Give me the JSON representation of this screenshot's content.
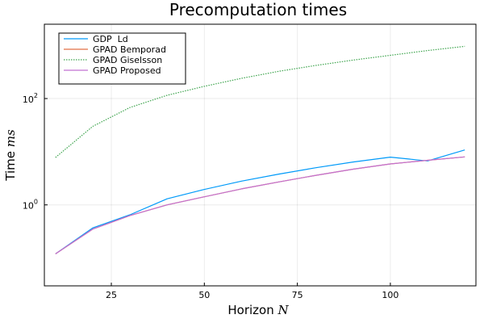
{
  "chart_data": {
    "type": "line",
    "title": "Precomputation times",
    "xlabel": {
      "text": "Horizon ",
      "math": "N"
    },
    "ylabel": {
      "text": "Time ",
      "math": "ms"
    },
    "yscale": "log10",
    "xlim": [
      7,
      123
    ],
    "ylim": [
      0.03,
      2500
    ],
    "x_ticks": [
      25,
      50,
      75,
      100
    ],
    "x_tick_labels": [
      "25",
      "50",
      "75",
      "100"
    ],
    "y_ticks": [
      1,
      100
    ],
    "y_tick_labels": [
      {
        "base": "10",
        "exp": "0"
      },
      {
        "base": "10",
        "exp": "2"
      }
    ],
    "grid": true,
    "legend_position": "top-left",
    "series": [
      {
        "name": "GDP  Ld",
        "color": "#009af9",
        "dash": "solid",
        "x": [
          10,
          20,
          30,
          40,
          50,
          60,
          70,
          80,
          90,
          100,
          110,
          120
        ],
        "y": [
          0.12,
          0.37,
          0.65,
          1.3,
          1.95,
          2.8,
          3.8,
          5.0,
          6.4,
          7.9,
          6.7,
          10.8
        ]
      },
      {
        "name": "GPAD Bemporad",
        "color": "#e26f46",
        "dash": "solid",
        "x": [
          10,
          20,
          30,
          40,
          50,
          60,
          70,
          80,
          90,
          100,
          110,
          120
        ],
        "y": [
          0.12,
          0.35,
          0.63,
          1.0,
          1.42,
          2.0,
          2.7,
          3.6,
          4.7,
          5.9,
          6.9,
          8.0
        ]
      },
      {
        "name": "GPAD Giselsson",
        "color": "#3da44d",
        "dash": "dotted",
        "x": [
          10,
          20,
          30,
          40,
          50,
          60,
          70,
          80,
          90,
          100,
          110,
          120
        ],
        "y": [
          7.8,
          30,
          68,
          115,
          170,
          240,
          325,
          420,
          530,
          650,
          800,
          960
        ]
      },
      {
        "name": "GPAD Proposed",
        "color": "#c271d2",
        "dash": "solid",
        "x": [
          10,
          20,
          30,
          40,
          50,
          60,
          70,
          80,
          90,
          100,
          110,
          120
        ],
        "y": [
          0.12,
          0.35,
          0.63,
          1.0,
          1.42,
          2.0,
          2.7,
          3.6,
          4.7,
          5.9,
          6.9,
          8.0
        ]
      }
    ]
  }
}
